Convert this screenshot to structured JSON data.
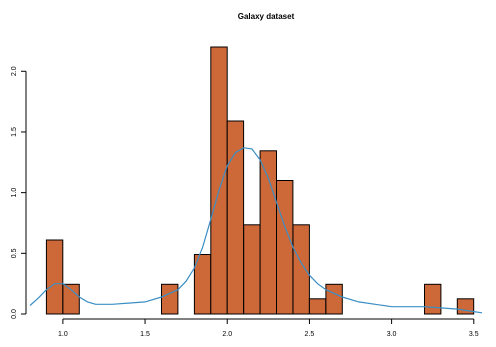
{
  "chart_data": {
    "type": "bar",
    "title": "Galaxy dataset",
    "xlabel": "",
    "ylabel": "",
    "xlim": [
      0.8,
      3.55
    ],
    "ylim": [
      0,
      2.2
    ],
    "grid": false,
    "x_ticks": [
      1.0,
      1.5,
      2.0,
      2.5,
      3.0,
      3.5
    ],
    "x_tick_labels": [
      "1.0",
      "1.5",
      "2.0",
      "2.5",
      "3.0",
      "3.5"
    ],
    "y_ticks": [
      0,
      0.5,
      1.0,
      1.5,
      2.0
    ],
    "y_tick_labels": [
      "0.0",
      "0.5",
      "1.0",
      "1.5",
      "2.0"
    ],
    "bins": [
      {
        "x0": 0.9,
        "x1": 1.0,
        "value": 0.61
      },
      {
        "x0": 1.0,
        "x1": 1.1,
        "value": 0.245
      },
      {
        "x0": 1.6,
        "x1": 1.7,
        "value": 0.245
      },
      {
        "x0": 1.8,
        "x1": 1.9,
        "value": 0.49
      },
      {
        "x0": 1.9,
        "x1": 2.0,
        "value": 2.2
      },
      {
        "x0": 2.0,
        "x1": 2.1,
        "value": 1.59
      },
      {
        "x0": 2.1,
        "x1": 2.2,
        "value": 0.735
      },
      {
        "x0": 2.2,
        "x1": 2.3,
        "value": 1.345
      },
      {
        "x0": 2.3,
        "x1": 2.4,
        "value": 1.1
      },
      {
        "x0": 2.4,
        "x1": 2.5,
        "value": 0.735
      },
      {
        "x0": 2.5,
        "x1": 2.6,
        "value": 0.125
      },
      {
        "x0": 2.6,
        "x1": 2.7,
        "value": 0.245
      },
      {
        "x0": 3.2,
        "x1": 3.3,
        "value": 0.245
      },
      {
        "x0": 3.4,
        "x1": 3.5,
        "value": 0.125
      }
    ],
    "density_curve": {
      "x": [
        0.8,
        0.85,
        0.9,
        0.95,
        1.0,
        1.05,
        1.1,
        1.15,
        1.2,
        1.25,
        1.3,
        1.4,
        1.5,
        1.6,
        1.7,
        1.75,
        1.8,
        1.85,
        1.9,
        1.95,
        2.0,
        2.05,
        2.1,
        2.15,
        2.2,
        2.25,
        2.3,
        2.35,
        2.4,
        2.45,
        2.5,
        2.55,
        2.6,
        2.7,
        2.8,
        2.9,
        3.0,
        3.1,
        3.2,
        3.3,
        3.4,
        3.5,
        3.55
      ],
      "y": [
        0.07,
        0.13,
        0.2,
        0.25,
        0.25,
        0.2,
        0.14,
        0.1,
        0.08,
        0.08,
        0.08,
        0.09,
        0.1,
        0.14,
        0.2,
        0.27,
        0.38,
        0.55,
        0.78,
        1.02,
        1.22,
        1.33,
        1.37,
        1.36,
        1.27,
        1.12,
        0.92,
        0.72,
        0.55,
        0.42,
        0.32,
        0.25,
        0.2,
        0.14,
        0.1,
        0.08,
        0.06,
        0.06,
        0.06,
        0.05,
        0.04,
        0.02,
        0.01
      ],
      "color": "#3a8ec4"
    },
    "bar_color": "#cd6839"
  }
}
